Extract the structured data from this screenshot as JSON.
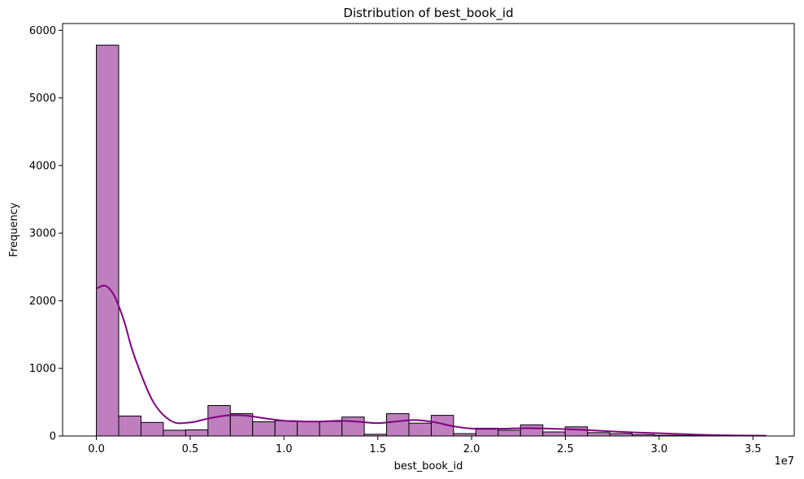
{
  "chart_data": {
    "type": "bar",
    "subtype": "histogram-with-kde",
    "title": "Distribution of best_book_id",
    "xlabel": "best_book_id",
    "ylabel": "Frequency",
    "x_offset_label": "1e7",
    "xlim": [
      -0.18,
      3.72
    ],
    "ylim": [
      0,
      6100
    ],
    "x_ticks": [
      0.0,
      0.5,
      1.0,
      1.5,
      2.0,
      2.5,
      3.0,
      3.5
    ],
    "x_tick_labels": [
      "0.0",
      "0.5",
      "1.0",
      "1.5",
      "2.0",
      "2.5",
      "3.0",
      "3.5"
    ],
    "y_ticks": [
      0,
      1000,
      2000,
      3000,
      4000,
      5000,
      6000
    ],
    "y_tick_labels": [
      "0",
      "1000",
      "2000",
      "3000",
      "4000",
      "5000",
      "6000"
    ],
    "bin_edges": [
      0.0,
      0.119,
      0.238,
      0.357,
      0.476,
      0.595,
      0.714,
      0.833,
      0.952,
      1.071,
      1.19,
      1.309,
      1.428,
      1.547,
      1.666,
      1.785,
      1.904,
      2.023,
      2.142,
      2.261,
      2.38,
      2.499,
      2.618,
      2.737,
      2.856,
      2.975,
      3.094,
      3.213,
      3.332,
      3.451,
      3.57
    ],
    "counts": [
      5780,
      295,
      200,
      85,
      90,
      450,
      330,
      210,
      225,
      215,
      215,
      280,
      25,
      330,
      190,
      305,
      35,
      115,
      85,
      165,
      60,
      135,
      50,
      35,
      20,
      10,
      8,
      5,
      3,
      2
    ],
    "kde": {
      "x": [
        0.0,
        0.05,
        0.1,
        0.15,
        0.2,
        0.3,
        0.4,
        0.5,
        0.6,
        0.7,
        0.8,
        0.9,
        1.0,
        1.1,
        1.2,
        1.3,
        1.4,
        1.5,
        1.6,
        1.7,
        1.8,
        1.9,
        2.0,
        2.1,
        2.2,
        2.3,
        2.4,
        2.5,
        2.6,
        2.7,
        2.8,
        2.9,
        3.0,
        3.1,
        3.2,
        3.3,
        3.4,
        3.57
      ],
      "y": [
        2180,
        2220,
        2050,
        1680,
        1200,
        520,
        220,
        200,
        260,
        305,
        300,
        260,
        225,
        215,
        215,
        225,
        210,
        190,
        215,
        235,
        205,
        145,
        110,
        105,
        110,
        115,
        110,
        100,
        90,
        75,
        60,
        50,
        40,
        30,
        20,
        12,
        8,
        5
      ]
    },
    "bar_color": "#bf7fbf",
    "bar_edge_color": "#000000",
    "kde_color": "#800080",
    "grid": false,
    "legend": "none"
  }
}
